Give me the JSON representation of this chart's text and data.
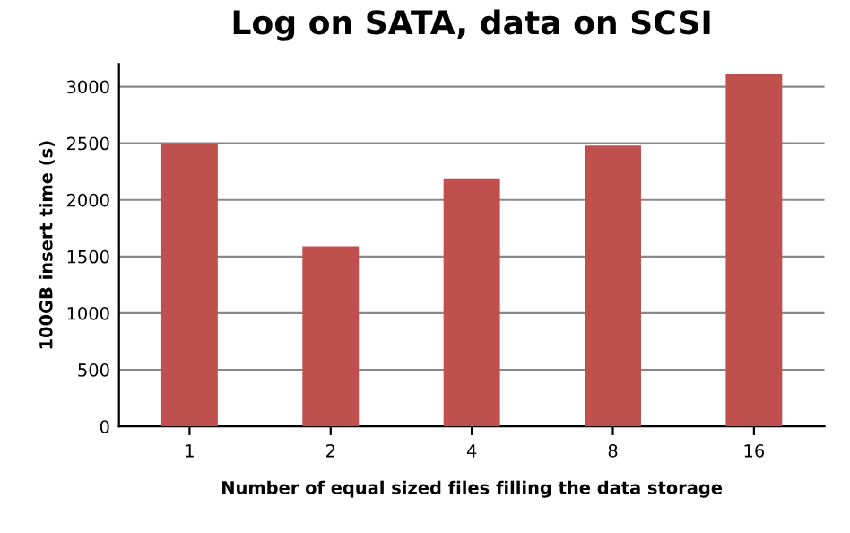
{
  "chart_data": {
    "type": "bar",
    "title": "Log on SATA, data on SCSI",
    "xlabel": "Number of equal sized files filling the data storage",
    "ylabel": "100GB insert time (s)",
    "categories": [
      "1",
      "2",
      "4",
      "8",
      "16"
    ],
    "values": [
      2500,
      1590,
      2190,
      2480,
      3110
    ],
    "color": "#c0504d",
    "ylim": [
      0,
      3200
    ],
    "yticks": [
      0,
      500,
      1000,
      1500,
      2000,
      2500,
      3000
    ],
    "grid": "y"
  }
}
